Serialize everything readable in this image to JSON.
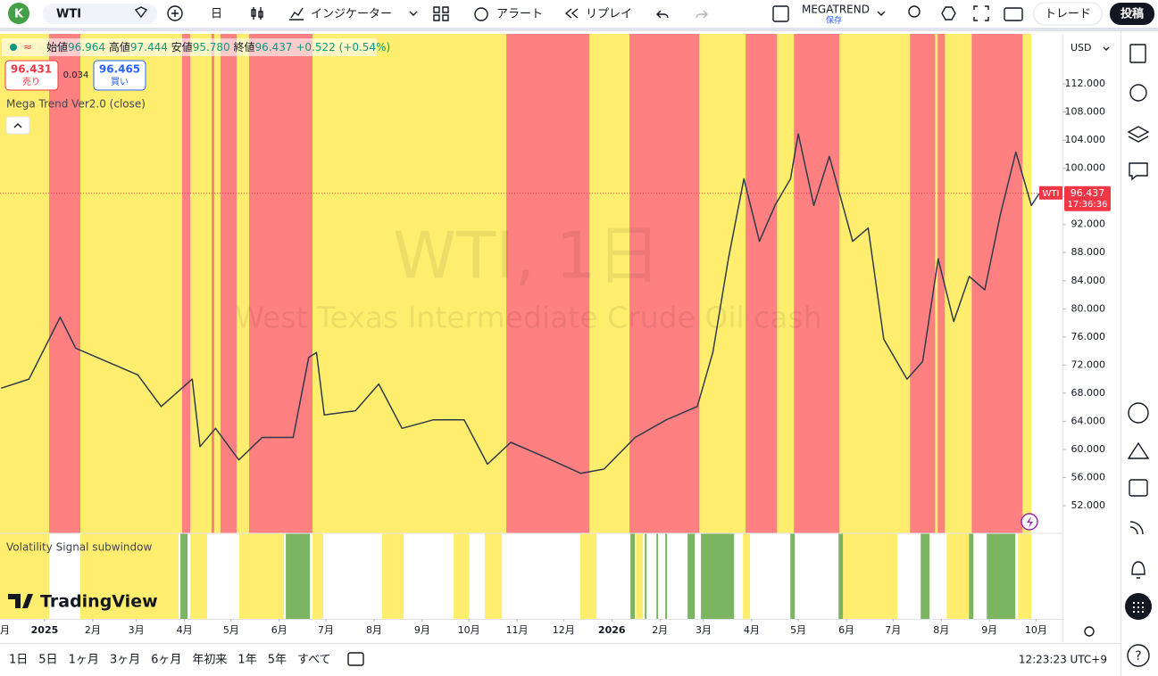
{
  "toolbar": {
    "avatar": "K",
    "symbol": "WTI",
    "interval": "日",
    "indicators": "インジケーター",
    "alert": "アラート",
    "replay": "リプレイ",
    "layout_name": "MEGATREND",
    "layout_status": "保存",
    "trade": "トレード",
    "publish": "投稿"
  },
  "legend": {
    "open_label": "始値",
    "open": "96.964",
    "high_label": "高値",
    "high": "97.444",
    "low_label": "安値",
    "low": "95.780",
    "close_label": "終値",
    "close": "96.437",
    "change": "+0.522",
    "change_pct": "(+0.54%)",
    "sell_price": "96.431",
    "sell_label": "売り",
    "spread": "0.034",
    "buy_price": "96.465",
    "buy_label": "買い",
    "indicator": "Mega Trend Ver2.0 (close)"
  },
  "chart_data": {
    "type": "line",
    "title": "WTI, 1日",
    "subtitle": "West Texas Intermediate Crude Oil cash",
    "currency": "USD",
    "symbol_badge": "WTI",
    "countdown": "17:36:36",
    "last_price": 96.437,
    "color": "#2f3a4a",
    "x": [
      -28,
      -10,
      10,
      20,
      40,
      60,
      75,
      95,
      100,
      110,
      125,
      140,
      160,
      170,
      175,
      180,
      200,
      215,
      230,
      250,
      270,
      285,
      300,
      320,
      345,
      360,
      380,
      400,
      420,
      430,
      440,
      450,
      460,
      470,
      480,
      485,
      495,
      505,
      520,
      530,
      540,
      555,
      565,
      575,
      585,
      595,
      605,
      615,
      625,
      635,
      640
    ],
    "values": [
      68.7,
      70,
      78.8,
      74.4,
      72.5,
      70.6,
      66.1,
      70,
      60.4,
      63,
      58.5,
      61.7,
      61.7,
      73.1,
      73.8,
      64.9,
      65.5,
      69.3,
      63,
      64.2,
      64.2,
      57.9,
      61,
      59.1,
      56.6,
      57.2,
      61.7,
      64.2,
      66.1,
      73.8,
      87.1,
      98.5,
      89.6,
      94.7,
      98.5,
      104.9,
      94.7,
      101.7,
      89.6,
      91.5,
      75.7,
      70,
      72.5,
      87.1,
      78.2,
      84.6,
      82.7,
      93.4,
      102.3,
      94.7,
      96.4
    ],
    "xlim": [
      -28.7,
      655
    ],
    "ylim": [
      48.06,
      119.12
    ],
    "xticks": [
      {
        "value": -31,
        "label": "月"
      },
      {
        "value": 0,
        "label": "2025"
      },
      {
        "value": 31,
        "label": "2月"
      },
      {
        "value": 59,
        "label": "3月"
      },
      {
        "value": 90,
        "label": "4月"
      },
      {
        "value": 120,
        "label": "5月"
      },
      {
        "value": 151,
        "label": "6月"
      },
      {
        "value": 181,
        "label": "7月"
      },
      {
        "value": 212,
        "label": "8月"
      },
      {
        "value": 243,
        "label": "9月"
      },
      {
        "value": 273,
        "label": "10月"
      },
      {
        "value": 304,
        "label": "11月"
      },
      {
        "value": 334,
        "label": "12月"
      },
      {
        "value": 365,
        "label": "2026"
      },
      {
        "value": 396,
        "label": "2月"
      },
      {
        "value": 424,
        "label": "3月"
      },
      {
        "value": 455,
        "label": "4月"
      },
      {
        "value": 485,
        "label": "5月"
      },
      {
        "value": 516,
        "label": "6月"
      },
      {
        "value": 546,
        "label": "7月"
      },
      {
        "value": 577,
        "label": "8月"
      },
      {
        "value": 608,
        "label": "9月"
      },
      {
        "value": 638,
        "label": "10月"
      }
    ],
    "yticks": [
      {
        "value": 52,
        "label": "52.000"
      },
      {
        "value": 56,
        "label": "56.000"
      },
      {
        "value": 60,
        "label": "60.000"
      },
      {
        "value": 64,
        "label": "64.000"
      },
      {
        "value": 68,
        "label": "68.000"
      },
      {
        "value": 72,
        "label": "72.000"
      },
      {
        "value": 76,
        "label": "76.000"
      },
      {
        "value": 80,
        "label": "80.000"
      },
      {
        "value": 84,
        "label": "84.000"
      },
      {
        "value": 88,
        "label": "88.000"
      },
      {
        "value": 92,
        "label": "92.000"
      },
      {
        "value": 96,
        "label": "96.000"
      },
      {
        "value": 100,
        "label": "100.000"
      },
      {
        "value": 104,
        "label": "104.000"
      },
      {
        "value": 108,
        "label": "108.000"
      },
      {
        "value": 112,
        "label": "112.000"
      }
    ],
    "bands": [
      {
        "start": -28.7,
        "end": 635,
        "color": "#ffee6e"
      },
      {
        "start": 2.9,
        "end": 23,
        "color": "#ff8080"
      },
      {
        "start": 88.5,
        "end": 93.7,
        "color": "#ff8080"
      },
      {
        "start": 107.5,
        "end": 109.2,
        "color": "#ff8080"
      },
      {
        "start": 113.2,
        "end": 123.6,
        "color": "#ff8080"
      },
      {
        "start": 131.6,
        "end": 172.4,
        "color": "#ff8080"
      },
      {
        "start": 297.1,
        "end": 350.6,
        "color": "#ff8080"
      },
      {
        "start": 376.4,
        "end": 421.3,
        "color": "#ff8080"
      },
      {
        "start": 451.1,
        "end": 471.3,
        "color": "#ff8080"
      },
      {
        "start": 482.2,
        "end": 511.5,
        "color": "#ff8080"
      },
      {
        "start": 556.9,
        "end": 573,
        "color": "#ff8080"
      },
      {
        "start": 574.7,
        "end": 579.3,
        "color": "#ff8080"
      },
      {
        "start": 596.6,
        "end": 629.3,
        "color": "#ff8080"
      }
    ],
    "subwindow": {
      "title": "Volatility Signal subwindow",
      "bands": [
        {
          "start": -28.7,
          "end": 2.9,
          "color": "#ffee6e"
        },
        {
          "start": 23,
          "end": 86.2,
          "color": "#ffee6e"
        },
        {
          "start": 87.4,
          "end": 92,
          "color": "#7cb562"
        },
        {
          "start": 93.7,
          "end": 104.6,
          "color": "#ffee6e"
        },
        {
          "start": 125.3,
          "end": 154,
          "color": "#ffee6e"
        },
        {
          "start": 155.2,
          "end": 170.7,
          "color": "#7cb562"
        },
        {
          "start": 172.4,
          "end": 179.3,
          "color": "#ffee6e"
        },
        {
          "start": 217.2,
          "end": 231,
          "color": "#ffee6e"
        },
        {
          "start": 263.2,
          "end": 273,
          "color": "#ffee6e"
        },
        {
          "start": 283.3,
          "end": 294.3,
          "color": "#ffee6e"
        },
        {
          "start": 344.8,
          "end": 355.2,
          "color": "#ffee6e"
        },
        {
          "start": 377,
          "end": 379.9,
          "color": "#7cb562"
        },
        {
          "start": 380.5,
          "end": 385.1,
          "color": "#ffee6e"
        },
        {
          "start": 386.2,
          "end": 387.4,
          "color": "#7cb562"
        },
        {
          "start": 393.7,
          "end": 394.8,
          "color": "#7cb562"
        },
        {
          "start": 399.4,
          "end": 400.6,
          "color": "#7cb562"
        },
        {
          "start": 413.8,
          "end": 418.4,
          "color": "#7cb562"
        },
        {
          "start": 422.4,
          "end": 443.7,
          "color": "#7cb562"
        },
        {
          "start": 449.4,
          "end": 454,
          "color": "#ffee6e"
        },
        {
          "start": 479.9,
          "end": 482.8,
          "color": "#7cb562"
        },
        {
          "start": 510.9,
          "end": 513.8,
          "color": "#7cb562"
        },
        {
          "start": 513.8,
          "end": 548.9,
          "color": "#ffee6e"
        },
        {
          "start": 563.8,
          "end": 569.5,
          "color": "#7cb562"
        },
        {
          "start": 580.5,
          "end": 594.8,
          "color": "#ffee6e"
        },
        {
          "start": 594.8,
          "end": 597.7,
          "color": "#7cb562"
        },
        {
          "start": 606.3,
          "end": 624.7,
          "color": "#7cb562"
        },
        {
          "start": 626.4,
          "end": 635,
          "color": "#ffee6e"
        }
      ]
    }
  },
  "brand": "TradingView",
  "bottom_bar": {
    "ranges": [
      "1日",
      "5日",
      "1ヶ月",
      "3ヶ月",
      "6ヶ月",
      "年初来",
      "1年",
      "5年",
      "すべて"
    ],
    "clock": "12:23:23 UTC+9"
  }
}
